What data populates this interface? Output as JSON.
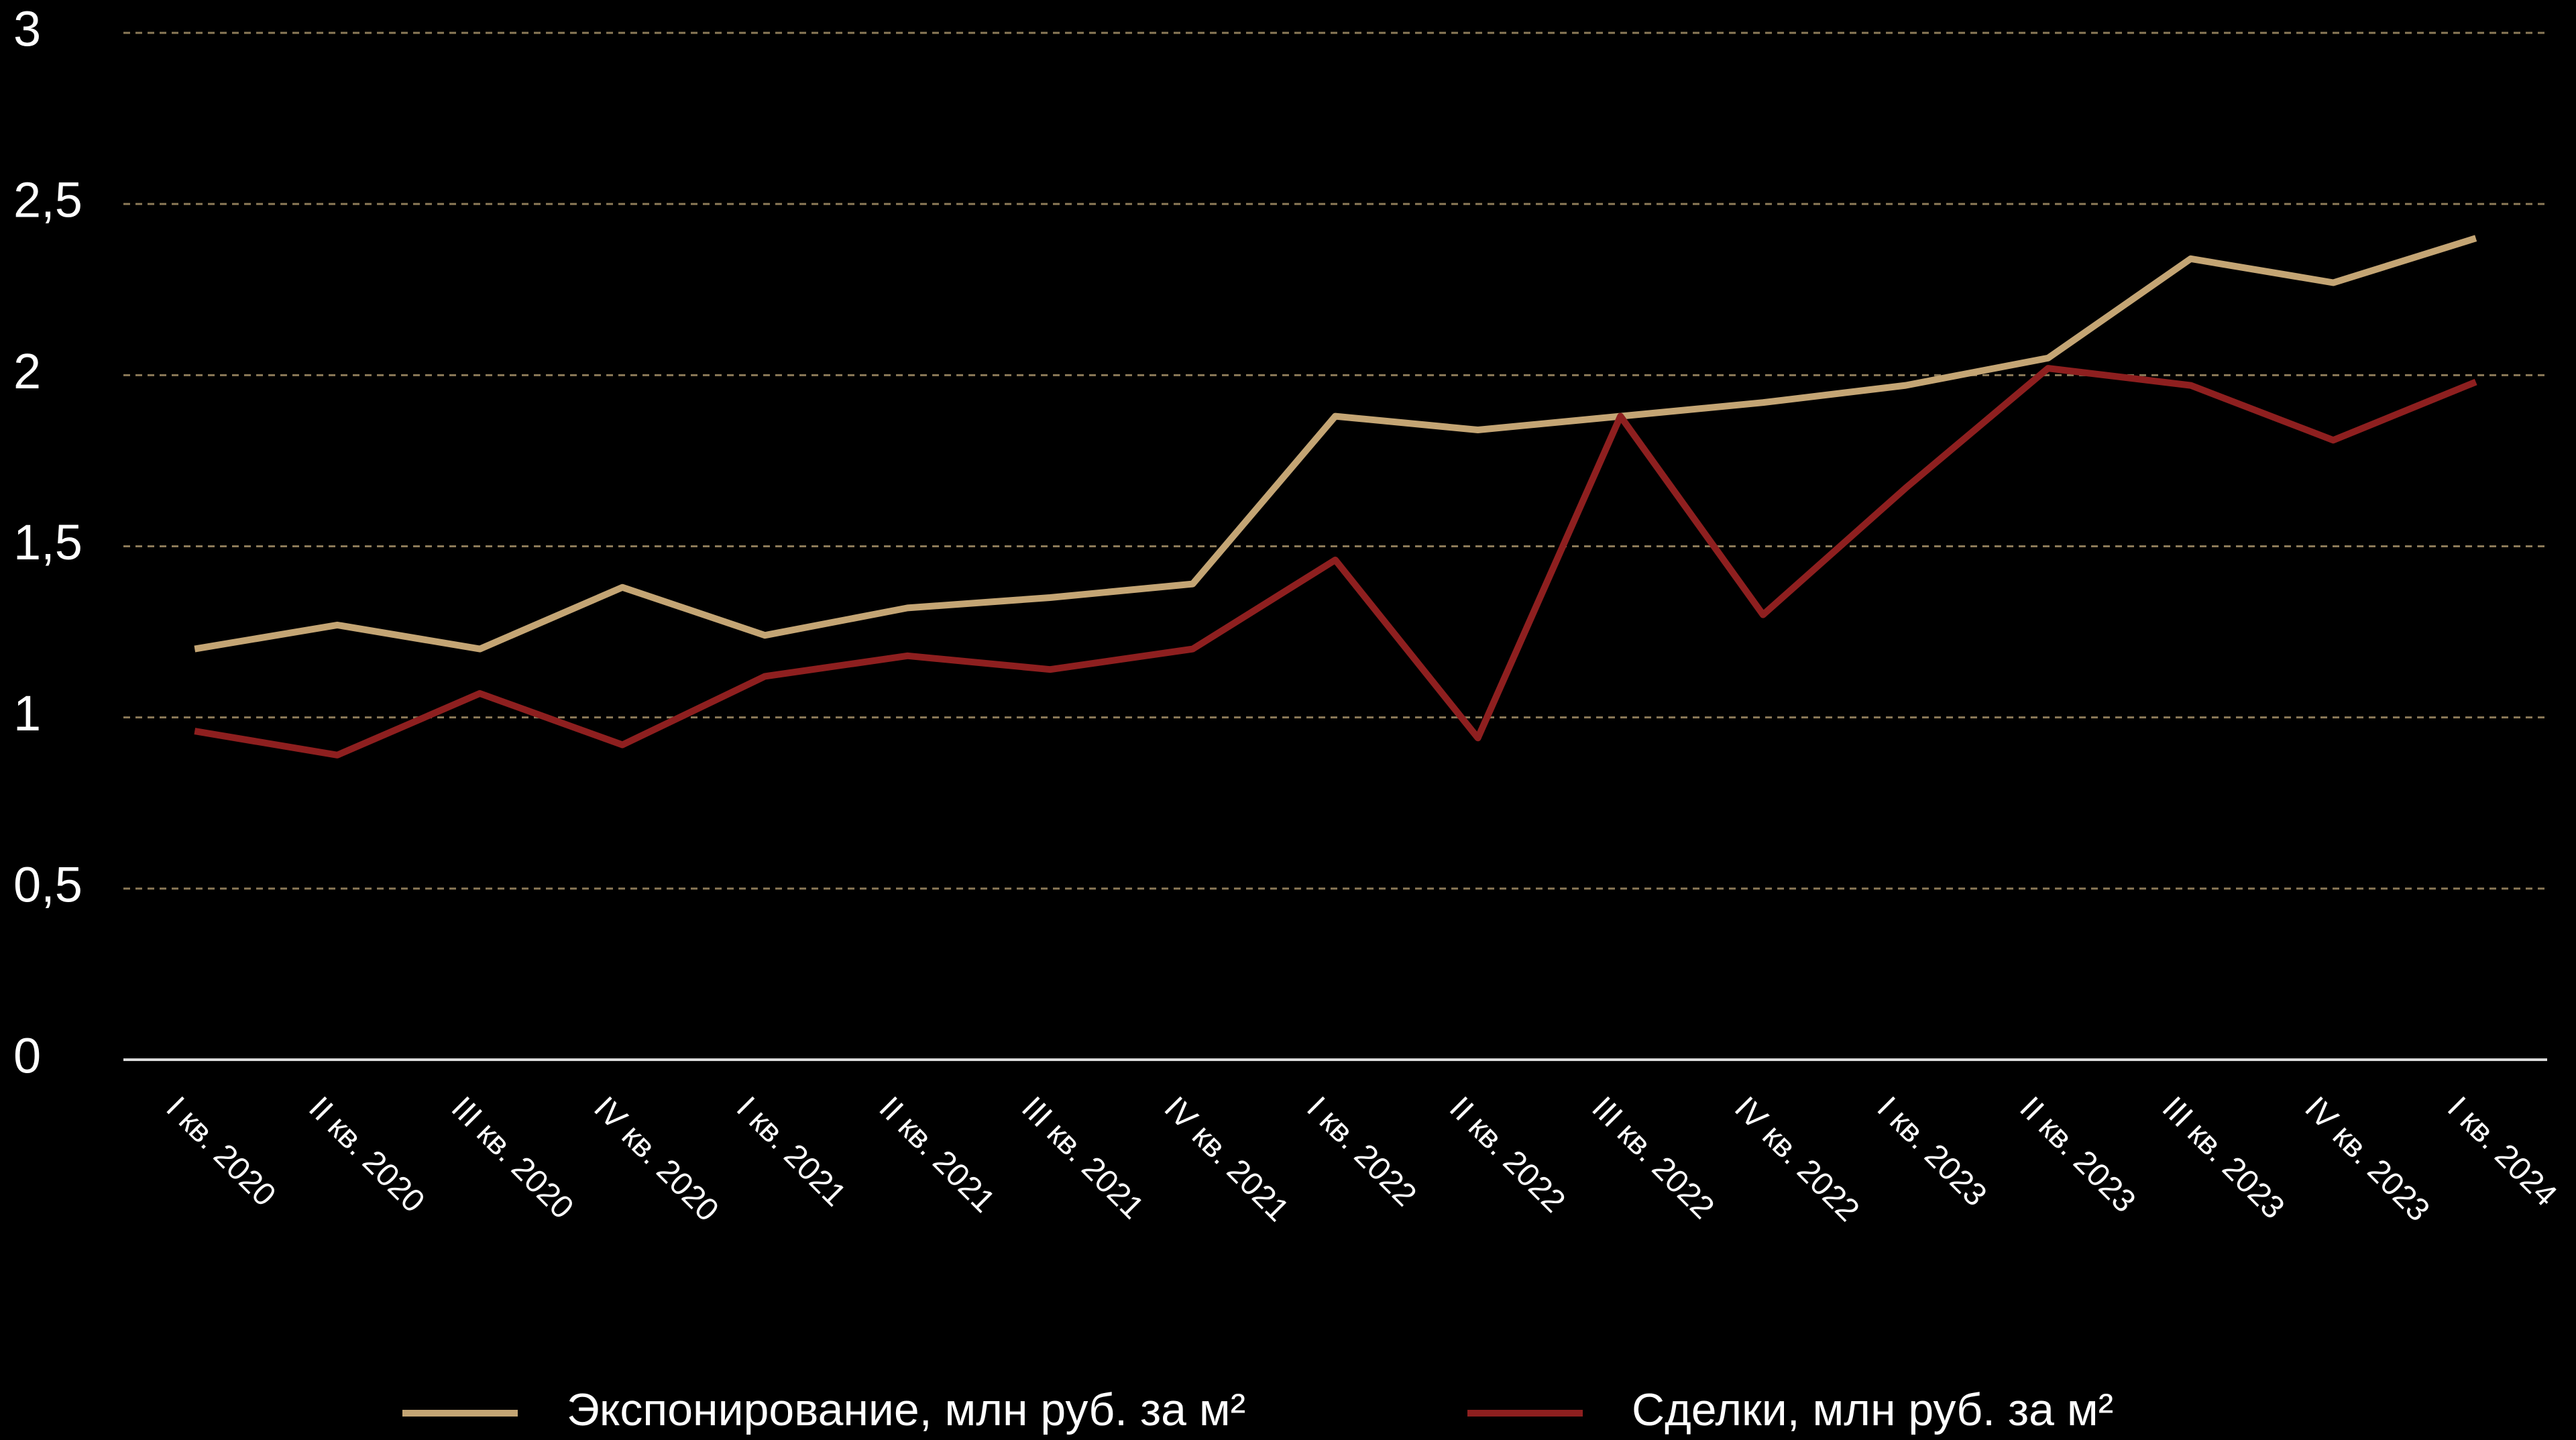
{
  "chart_data": {
    "type": "line",
    "categories": [
      "I кв. 2020",
      "II кв. 2020",
      "III кв. 2020",
      "IV кв. 2020",
      "I кв. 2021",
      "II кв. 2021",
      "III кв. 2021",
      "IV кв. 2021",
      "I кв. 2022",
      "II кв. 2022",
      "III кв. 2022",
      "IV кв. 2022",
      "I кв. 2023",
      "II кв. 2023",
      "III кв. 2023",
      "IV кв. 2023",
      "I кв. 2024"
    ],
    "series": [
      {
        "name": "Экспонирование, млн руб. за м²",
        "color": "#c4a574",
        "values": [
          1.2,
          1.27,
          1.2,
          1.38,
          1.24,
          1.32,
          1.35,
          1.39,
          1.88,
          1.84,
          1.88,
          1.92,
          1.97,
          2.05,
          2.34,
          2.27,
          2.4
        ]
      },
      {
        "name": "Сделки, млн руб. за м²",
        "color": "#8e1f1f",
        "values": [
          0.96,
          0.89,
          1.07,
          0.92,
          1.12,
          1.18,
          1.14,
          1.2,
          1.46,
          0.94,
          1.88,
          1.3,
          1.67,
          2.02,
          1.97,
          1.81,
          1.98
        ]
      }
    ],
    "ylim": [
      0,
      3
    ],
    "yticks": [
      0,
      {
        "value": 0.5,
        "label": "0,5"
      },
      1,
      {
        "value": 1.5,
        "label": "1,5"
      },
      2,
      {
        "value": 2.5,
        "label": "2,5"
      },
      3
    ],
    "grid": true,
    "legend": "bottom"
  }
}
